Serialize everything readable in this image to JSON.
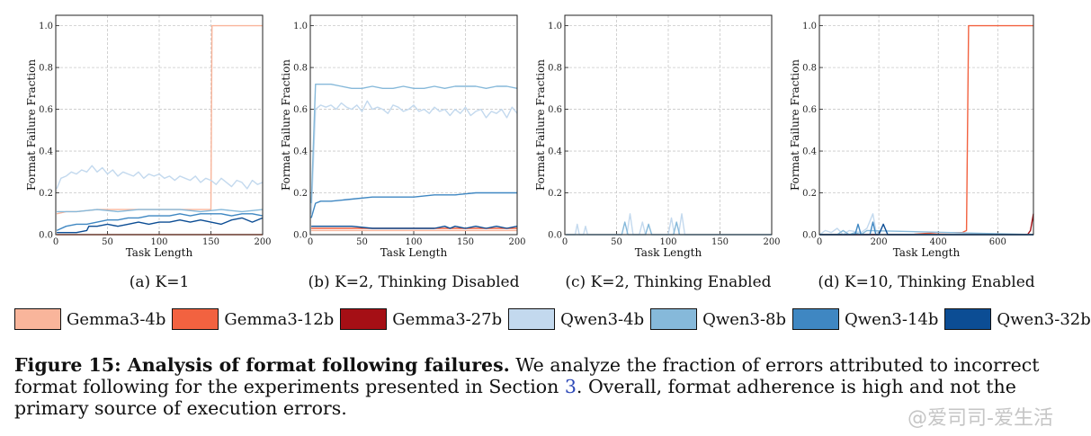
{
  "chart_data": [
    {
      "type": "line",
      "caption": "(a) K=1",
      "xlabel": "Task Length",
      "ylabel": "Format Failure Fraction",
      "xlim": [
        0,
        200
      ],
      "ylim": [
        0,
        1.05
      ],
      "xticks": [
        "0",
        "50",
        "100",
        "150",
        "200"
      ],
      "yticks": [
        "0.0",
        "0.2",
        "0.4",
        "0.6",
        "0.8",
        "1.0"
      ],
      "grid": true,
      "series": [
        {
          "name": "Gemma3-4b",
          "color": "#f9b59b",
          "x": [
            1,
            10,
            20,
            40,
            60,
            80,
            100,
            120,
            140,
            150,
            151,
            152,
            160,
            180,
            200
          ],
          "y": [
            0.1,
            0.11,
            0.11,
            0.12,
            0.12,
            0.12,
            0.12,
            0.12,
            0.12,
            0.12,
            1.0,
            1.0,
            1.0,
            1.0,
            1.0
          ]
        },
        {
          "name": "Gemma3-12b",
          "color": "#f26240",
          "x": [
            1,
            50,
            100,
            150,
            200
          ],
          "y": [
            0.0,
            0.0,
            0.0,
            0.0,
            0.0
          ]
        },
        {
          "name": "Qwen3-4b",
          "color": "#c3d9ee",
          "x": [
            1,
            5,
            10,
            15,
            20,
            25,
            30,
            35,
            40,
            45,
            50,
            55,
            60,
            65,
            70,
            75,
            80,
            85,
            90,
            95,
            100,
            105,
            110,
            115,
            120,
            125,
            130,
            135,
            140,
            145,
            150,
            155,
            160,
            165,
            170,
            175,
            180,
            185,
            190,
            195,
            200
          ],
          "y": [
            0.22,
            0.27,
            0.28,
            0.3,
            0.29,
            0.31,
            0.3,
            0.33,
            0.3,
            0.32,
            0.29,
            0.31,
            0.28,
            0.3,
            0.29,
            0.28,
            0.3,
            0.27,
            0.29,
            0.28,
            0.29,
            0.27,
            0.28,
            0.26,
            0.28,
            0.27,
            0.26,
            0.28,
            0.25,
            0.27,
            0.26,
            0.24,
            0.27,
            0.25,
            0.23,
            0.26,
            0.25,
            0.22,
            0.26,
            0.24,
            0.25
          ]
        },
        {
          "name": "Qwen3-8b",
          "color": "#86b9da",
          "x": [
            1,
            20,
            40,
            60,
            80,
            100,
            120,
            140,
            160,
            180,
            200
          ],
          "y": [
            0.11,
            0.11,
            0.12,
            0.11,
            0.12,
            0.12,
            0.12,
            0.11,
            0.12,
            0.11,
            0.12
          ]
        },
        {
          "name": "Qwen3-14b",
          "color": "#3f87c2",
          "x": [
            1,
            10,
            20,
            30,
            40,
            50,
            60,
            70,
            80,
            90,
            100,
            110,
            120,
            130,
            140,
            150,
            160,
            170,
            180,
            190,
            200
          ],
          "y": [
            0.02,
            0.04,
            0.05,
            0.05,
            0.06,
            0.07,
            0.07,
            0.08,
            0.08,
            0.09,
            0.09,
            0.09,
            0.1,
            0.09,
            0.1,
            0.1,
            0.1,
            0.09,
            0.1,
            0.1,
            0.09
          ]
        },
        {
          "name": "Qwen3-32b",
          "color": "#0c4d94",
          "x": [
            1,
            10,
            20,
            30,
            32,
            40,
            50,
            60,
            70,
            80,
            90,
            100,
            110,
            120,
            130,
            140,
            150,
            160,
            170,
            180,
            190,
            200
          ],
          "y": [
            0.01,
            0.01,
            0.01,
            0.02,
            0.04,
            0.04,
            0.05,
            0.04,
            0.05,
            0.06,
            0.05,
            0.06,
            0.06,
            0.07,
            0.06,
            0.07,
            0.06,
            0.05,
            0.07,
            0.08,
            0.06,
            0.08
          ]
        }
      ]
    },
    {
      "type": "line",
      "caption": "(b) K=2, Thinking Disabled",
      "xlabel": "Task Length",
      "ylabel": "Format Failure Fraction",
      "xlim": [
        0,
        200
      ],
      "ylim": [
        0,
        1.05
      ],
      "xticks": [
        "0",
        "50",
        "100",
        "150",
        "200"
      ],
      "yticks": [
        "0.0",
        "0.2",
        "0.4",
        "0.6",
        "0.8",
        "1.0"
      ],
      "grid": true,
      "series": [
        {
          "name": "Gemma3-4b",
          "color": "#f9b59b",
          "x": [
            1,
            50,
            100,
            150,
            200
          ],
          "y": [
            0.02,
            0.02,
            0.02,
            0.02,
            0.02
          ]
        },
        {
          "name": "Gemma3-12b",
          "color": "#f26240",
          "x": [
            1,
            50,
            100,
            150,
            200
          ],
          "y": [
            0.03,
            0.03,
            0.03,
            0.03,
            0.03
          ]
        },
        {
          "name": "Qwen3-4b",
          "color": "#c3d9ee",
          "x": [
            1,
            5,
            10,
            15,
            20,
            25,
            30,
            35,
            40,
            45,
            50,
            55,
            60,
            65,
            70,
            75,
            80,
            85,
            90,
            95,
            100,
            105,
            110,
            115,
            120,
            125,
            130,
            135,
            140,
            145,
            150,
            155,
            160,
            165,
            170,
            175,
            180,
            185,
            190,
            195,
            200
          ],
          "y": [
            0.1,
            0.6,
            0.62,
            0.61,
            0.62,
            0.6,
            0.63,
            0.61,
            0.6,
            0.62,
            0.59,
            0.64,
            0.6,
            0.61,
            0.6,
            0.58,
            0.62,
            0.61,
            0.59,
            0.6,
            0.62,
            0.59,
            0.6,
            0.58,
            0.61,
            0.59,
            0.6,
            0.57,
            0.6,
            0.58,
            0.61,
            0.57,
            0.59,
            0.6,
            0.56,
            0.59,
            0.58,
            0.6,
            0.56,
            0.61,
            0.58
          ]
        },
        {
          "name": "Qwen3-8b",
          "color": "#86b9da",
          "x": [
            1,
            5,
            10,
            20,
            30,
            40,
            50,
            60,
            70,
            80,
            90,
            100,
            110,
            120,
            130,
            140,
            150,
            160,
            170,
            180,
            190,
            200
          ],
          "y": [
            0.15,
            0.72,
            0.72,
            0.72,
            0.71,
            0.7,
            0.7,
            0.71,
            0.7,
            0.7,
            0.71,
            0.7,
            0.7,
            0.71,
            0.7,
            0.71,
            0.71,
            0.71,
            0.7,
            0.71,
            0.71,
            0.7
          ]
        },
        {
          "name": "Qwen3-14b",
          "color": "#3f87c2",
          "x": [
            1,
            5,
            10,
            20,
            40,
            60,
            80,
            100,
            120,
            140,
            160,
            180,
            200
          ],
          "y": [
            0.08,
            0.15,
            0.16,
            0.16,
            0.17,
            0.18,
            0.18,
            0.18,
            0.19,
            0.19,
            0.2,
            0.2,
            0.2
          ]
        },
        {
          "name": "Qwen3-32b",
          "color": "#0c4d94",
          "x": [
            1,
            20,
            40,
            60,
            80,
            100,
            120,
            130,
            135,
            140,
            150,
            160,
            170,
            180,
            190,
            200
          ],
          "y": [
            0.04,
            0.04,
            0.04,
            0.03,
            0.03,
            0.03,
            0.03,
            0.04,
            0.03,
            0.04,
            0.03,
            0.04,
            0.03,
            0.04,
            0.03,
            0.04
          ]
        }
      ]
    },
    {
      "type": "line",
      "caption": "(c) K=2, Thinking Enabled",
      "xlabel": "Task Length",
      "ylabel": "Format Failure Fraction",
      "xlim": [
        0,
        200
      ],
      "ylim": [
        0,
        1.05
      ],
      "xticks": [
        "0",
        "50",
        "100",
        "150",
        "200"
      ],
      "yticks": [
        "0.0",
        "0.2",
        "0.4",
        "0.6",
        "0.8",
        "1.0"
      ],
      "grid": true,
      "series": [
        {
          "name": "Qwen3-4b",
          "color": "#c3d9ee",
          "x": [
            1,
            10,
            12,
            14,
            18,
            20,
            22,
            60,
            63,
            66,
            72,
            75,
            78,
            100,
            103,
            106,
            110,
            113,
            116,
            200
          ],
          "y": [
            0,
            0,
            0.05,
            0,
            0,
            0.04,
            0,
            0,
            0.1,
            0,
            0,
            0.06,
            0,
            0,
            0.08,
            0,
            0,
            0.1,
            0,
            0
          ]
        },
        {
          "name": "Qwen3-8b",
          "color": "#86b9da",
          "x": [
            1,
            55,
            58,
            61,
            78,
            81,
            84,
            105,
            108,
            111,
            200
          ],
          "y": [
            0,
            0,
            0.06,
            0,
            0,
            0.05,
            0,
            0,
            0.06,
            0,
            0
          ]
        }
      ]
    },
    {
      "type": "line",
      "caption": "(d) K=10, Thinking Enabled",
      "xlabel": "Task Length",
      "ylabel": "Format Failure Fraction",
      "xlim": [
        0,
        720
      ],
      "ylim": [
        0,
        1.05
      ],
      "xticks": [
        "0",
        "200",
        "400",
        "600"
      ],
      "yticks": [
        "0.0",
        "0.2",
        "0.4",
        "0.6",
        "0.8",
        "1.0"
      ],
      "grid": true,
      "series": [
        {
          "name": "Gemma3-12b",
          "color": "#f26240",
          "x": [
            1,
            200,
            300,
            400,
            480,
            495,
            502,
            720
          ],
          "y": [
            0.0,
            0.0,
            0.0,
            0.01,
            0.01,
            0.02,
            1.0,
            1.0
          ]
        },
        {
          "name": "Gemma3-27b",
          "color": "#a50f15",
          "x": [
            1,
            400,
            700,
            710,
            720
          ],
          "y": [
            0.0,
            0.0,
            0.0,
            0.02,
            0.1
          ]
        },
        {
          "name": "Qwen3-4b",
          "color": "#c3d9ee",
          "x": [
            1,
            20,
            40,
            60,
            80,
            100,
            140,
            160,
            180,
            190,
            200,
            220,
            720
          ],
          "y": [
            0.0,
            0.02,
            0.01,
            0.03,
            0.0,
            0.02,
            0.01,
            0.03,
            0.1,
            0.02,
            0.0,
            0.0,
            0.0
          ]
        },
        {
          "name": "Qwen3-8b",
          "color": "#86b9da",
          "x": [
            1,
            60,
            80,
            100,
            120,
            140,
            160,
            720
          ],
          "y": [
            0.0,
            0.0,
            0.02,
            0.0,
            0.01,
            0.0,
            0.02,
            0.0
          ]
        },
        {
          "name": "Qwen3-14b",
          "color": "#3f87c2",
          "x": [
            1,
            120,
            130,
            140,
            170,
            180,
            190,
            720
          ],
          "y": [
            0.0,
            0.0,
            0.05,
            0.0,
            0.0,
            0.06,
            0.0,
            0.0
          ]
        },
        {
          "name": "Qwen3-32b",
          "color": "#0c4d94",
          "x": [
            1,
            200,
            215,
            230,
            720
          ],
          "y": [
            0.0,
            0.0,
            0.05,
            0.0,
            0.0
          ]
        }
      ]
    }
  ],
  "legend": {
    "items": [
      {
        "name": "Gemma3-4b",
        "color": "#f9b59b"
      },
      {
        "name": "Gemma3-12b",
        "color": "#f26240"
      },
      {
        "name": "Gemma3-27b",
        "color": "#a50f15"
      },
      {
        "name": "Qwen3-4b",
        "color": "#c3d9ee"
      },
      {
        "name": "Qwen3-8b",
        "color": "#86b9da"
      },
      {
        "name": "Qwen3-14b",
        "color": "#3f87c2"
      },
      {
        "name": "Qwen3-32b",
        "color": "#0c4d94"
      }
    ]
  },
  "figure_caption": {
    "label": "Figure 15: Analysis of format following failures.",
    "text_before_ref": " We analyze the fraction of errors attributed to incorrect format following for the experiments presented in Section ",
    "ref": "3",
    "text_after_ref": ". Overall, format adherence is high and not the primary source of execution errors."
  },
  "watermark": "@爱司司-爱生活"
}
